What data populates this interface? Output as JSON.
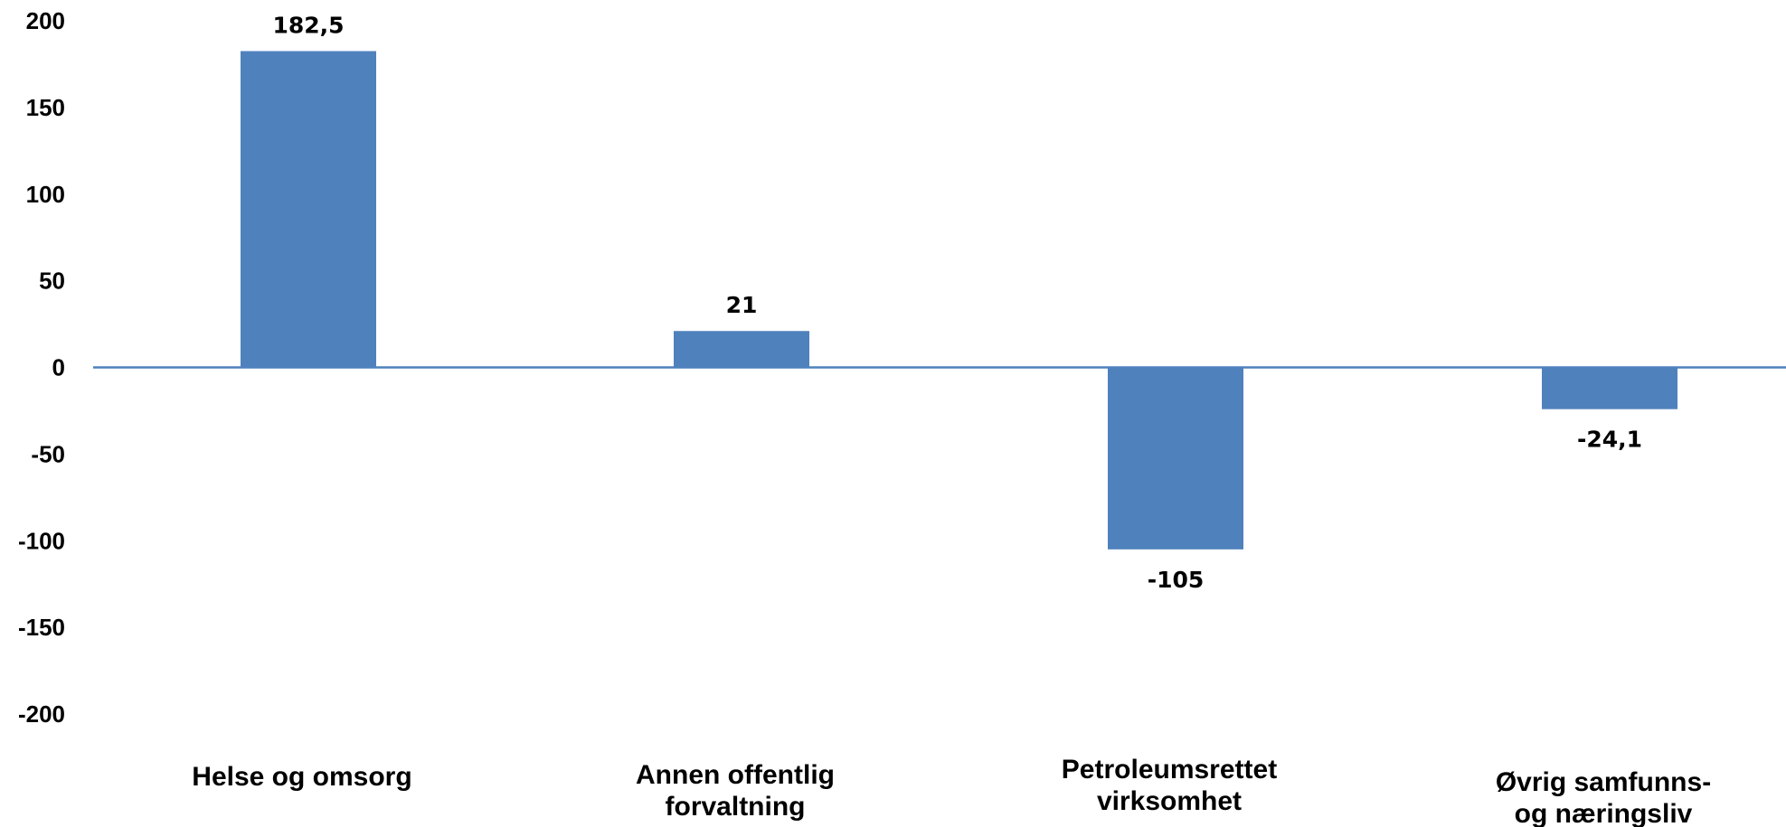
{
  "chart_data": {
    "type": "bar",
    "categories": [
      [
        "Helse  og omsorg"
      ],
      [
        "Annen offentlig",
        "forvaltning"
      ],
      [
        "Petroleumsrettet",
        "virksomhet"
      ],
      [
        "Øvrig samfunns-",
        "og næringsliv"
      ]
    ],
    "values": [
      182.5,
      21,
      -105,
      -24.1
    ],
    "data_labels": [
      "182,5",
      "21",
      "-105",
      "-24,1"
    ],
    "yticks": [
      200,
      150,
      100,
      50,
      0,
      -50,
      -100,
      -150,
      -200
    ],
    "ylim": [
      -200,
      200
    ],
    "grid": false,
    "legend": "none",
    "colors": {
      "bar": "#4f81bd",
      "axis": "#4f81bd"
    }
  }
}
